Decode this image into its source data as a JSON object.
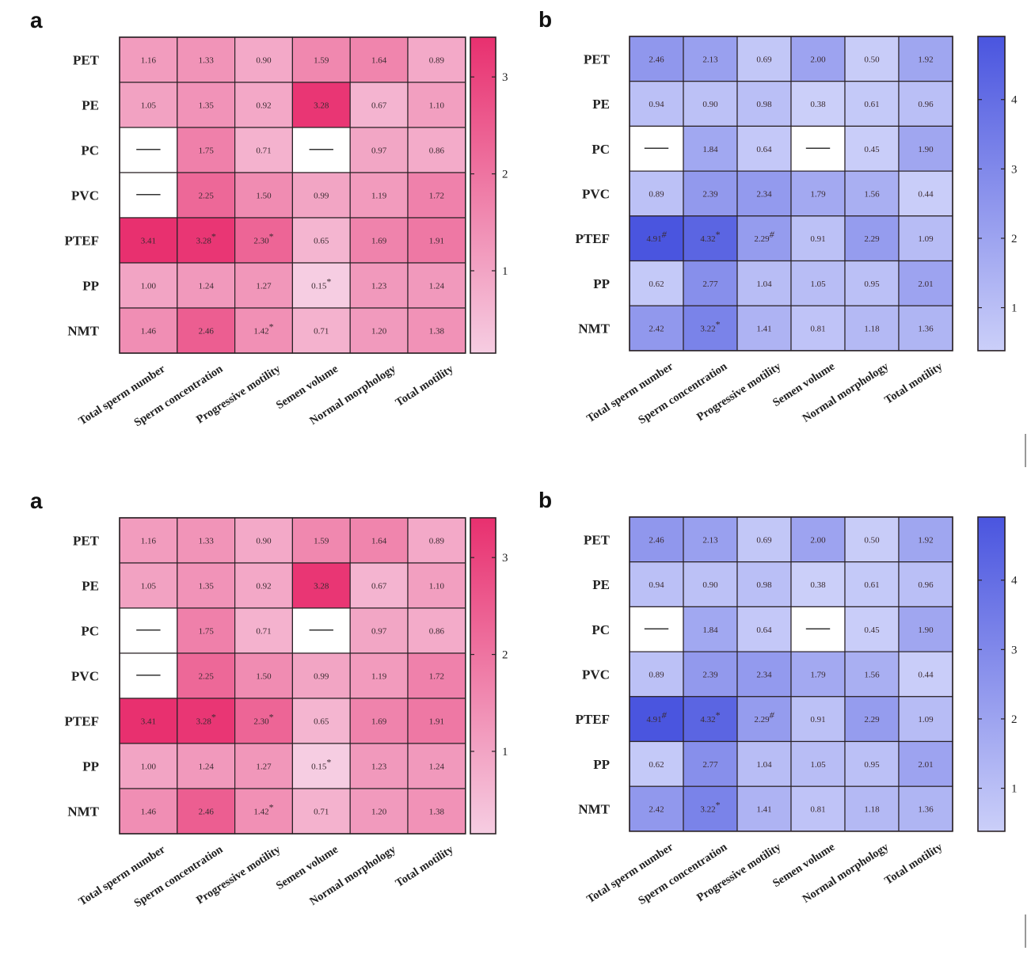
{
  "chart_data": [
    {
      "type": "heatmap",
      "panel_label": "a",
      "rows": [
        "PET",
        "PE",
        "PC",
        "PVC",
        "PTEF",
        "PP",
        "NMT"
      ],
      "columns": [
        "Total sperm number",
        "Sperm concentration",
        "Progressive motility",
        "Semen volume",
        "Normal morphology",
        "Total motility"
      ],
      "values": [
        [
          1.16,
          1.33,
          0.9,
          1.59,
          1.64,
          0.89
        ],
        [
          1.05,
          1.35,
          0.92,
          3.28,
          0.67,
          1.1
        ],
        [
          null,
          1.75,
          0.71,
          null,
          0.97,
          0.86
        ],
        [
          null,
          2.25,
          1.5,
          0.99,
          1.19,
          1.72
        ],
        [
          3.41,
          3.28,
          2.3,
          0.65,
          1.69,
          1.91
        ],
        [
          1.0,
          1.24,
          1.27,
          0.15,
          1.23,
          1.24
        ],
        [
          1.46,
          2.46,
          1.42,
          0.71,
          1.2,
          1.38
        ]
      ],
      "annotations": [
        {
          "row": 4,
          "col": 1,
          "mark": "*"
        },
        {
          "row": 4,
          "col": 2,
          "mark": "*"
        },
        {
          "row": 5,
          "col": 3,
          "mark": "*"
        },
        {
          "row": 6,
          "col": 2,
          "mark": "*"
        }
      ],
      "missing_symbol": "—",
      "colorbar": {
        "range": [
          0.15,
          3.41
        ],
        "ticks": [
          1,
          2,
          3
        ],
        "color_low": "#f6cde2",
        "color_high": "#e8306f"
      }
    },
    {
      "type": "heatmap",
      "panel_label": "b",
      "rows": [
        "PET",
        "PE",
        "PC",
        "PVC",
        "PTEF",
        "PP",
        "NMT"
      ],
      "columns": [
        "Total sperm number",
        "Sperm concentration",
        "Progressive motility",
        "Semen volume",
        "Normal morphology",
        "Total motility"
      ],
      "values": [
        [
          2.46,
          2.13,
          0.69,
          2.0,
          0.5,
          1.92
        ],
        [
          0.94,
          0.9,
          0.98,
          0.38,
          0.61,
          0.96
        ],
        [
          null,
          1.84,
          0.64,
          null,
          0.45,
          1.9
        ],
        [
          0.89,
          2.39,
          2.34,
          1.79,
          1.56,
          0.44
        ],
        [
          4.91,
          4.32,
          2.29,
          0.91,
          2.29,
          1.09
        ],
        [
          0.62,
          2.77,
          1.04,
          1.05,
          0.95,
          2.01
        ],
        [
          2.42,
          3.22,
          1.41,
          0.81,
          1.18,
          1.36
        ]
      ],
      "annotations": [
        {
          "row": 4,
          "col": 0,
          "mark": "#"
        },
        {
          "row": 4,
          "col": 1,
          "mark": "*"
        },
        {
          "row": 4,
          "col": 2,
          "mark": "#"
        },
        {
          "row": 6,
          "col": 1,
          "mark": "*"
        }
      ],
      "missing_symbol": "—",
      "colorbar": {
        "range": [
          0.38,
          4.91
        ],
        "ticks": [
          1,
          2,
          3,
          4
        ],
        "color_low": "#cbcff9",
        "color_high": "#4a55df"
      }
    }
  ]
}
